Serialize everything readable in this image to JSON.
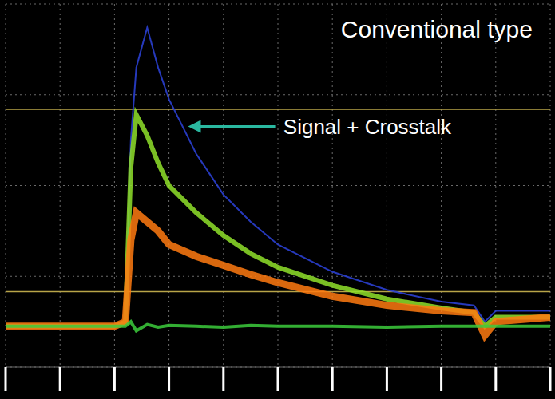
{
  "chart_data": {
    "type": "line",
    "title": "Conventional type",
    "x": [
      0,
      1,
      2,
      2.2,
      2.3,
      2.4,
      2.6,
      2.8,
      3,
      3.5,
      4,
      4.5,
      5,
      6,
      7,
      8,
      8.6,
      8.8,
      9,
      10
    ],
    "series": [
      {
        "color": "#2a3fd0",
        "values": [
          0.45,
          0.45,
          0.45,
          0.5,
          2.5,
          3.3,
          3.74,
          3.3,
          2.95,
          2.35,
          1.9,
          1.6,
          1.35,
          1.05,
          0.85,
          0.72,
          0.68,
          0.5,
          0.62,
          0.62
        ]
      },
      {
        "color": "#8fe02a",
        "values": [
          0.45,
          0.45,
          0.45,
          0.5,
          2.2,
          2.78,
          2.55,
          2.25,
          2.0,
          1.7,
          1.45,
          1.25,
          1.1,
          0.9,
          0.75,
          0.65,
          0.6,
          0.45,
          0.55,
          0.55
        ]
      },
      {
        "color": "#ff7a10",
        "values": [
          0.45,
          0.45,
          0.45,
          0.5,
          1.4,
          1.7,
          1.6,
          1.5,
          1.35,
          1.22,
          1.12,
          1.02,
          0.93,
          0.78,
          0.68,
          0.62,
          0.6,
          0.35,
          0.5,
          0.55
        ]
      },
      {
        "color": "#3ccc3c",
        "values": [
          0.45,
          0.45,
          0.45,
          0.45,
          0.5,
          0.4,
          0.47,
          0.44,
          0.46,
          0.45,
          0.44,
          0.46,
          0.45,
          0.45,
          0.44,
          0.45,
          0.45,
          0.45,
          0.45,
          0.45
        ]
      }
    ],
    "xlim": [
      0,
      10
    ],
    "xticks": [
      0,
      1,
      2,
      3,
      4,
      5,
      6,
      7,
      8,
      9,
      10
    ],
    "ylim": [
      0,
      4
    ],
    "yticks": [
      0,
      1,
      2,
      3,
      4
    ],
    "grid": true,
    "tick_labels": false,
    "annotations": [
      {
        "text": "Signal + Crosstalk",
        "x": 3.35,
        "y": 2.65
      }
    ],
    "reference_lines": [
      2.84,
      0.83
    ]
  }
}
